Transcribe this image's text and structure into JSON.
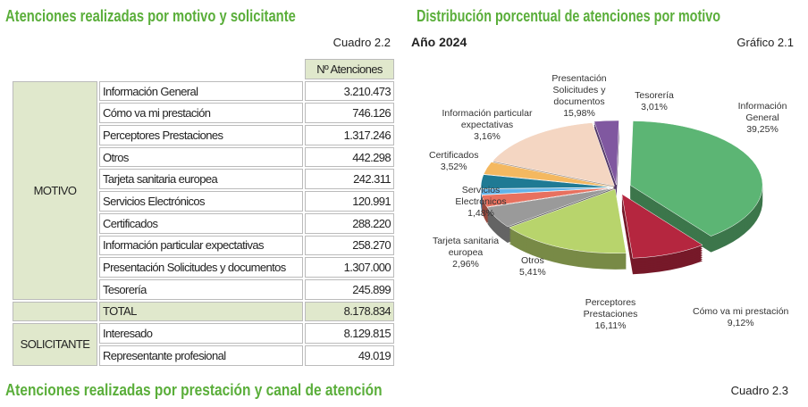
{
  "left": {
    "title": "Atenciones realizadas por motivo y solicitante",
    "cuadro": "Cuadro 2.2",
    "header": "Nº Atenciones",
    "motivo_label": "MOTIVO",
    "motivo_rows": [
      {
        "label": "Información General",
        "value": "3.210.473"
      },
      {
        "label": "Cómo va mi prestación",
        "value": "746.126"
      },
      {
        "label": "Perceptores Prestaciones",
        "value": "1.317.246"
      },
      {
        "label": "Otros",
        "value": "442.298"
      },
      {
        "label": "Tarjeta sanitaria europea",
        "value": "242.311"
      },
      {
        "label": "Servicios Electrónicos",
        "value": "120.991"
      },
      {
        "label": "Certificados",
        "value": "288.220"
      },
      {
        "label": "Información particular expectativas",
        "value": "258.270"
      },
      {
        "label": "Presentación Solicitudes y documentos",
        "value": "1.307.000"
      },
      {
        "label": "Tesorería",
        "value": "245.899"
      }
    ],
    "total_label": "TOTAL",
    "total_value": "8.178.834",
    "solicitante_label": "SOLICITANTE",
    "solicitante_rows": [
      {
        "label": "Interesado",
        "value": "8.129.815"
      },
      {
        "label": "Representante profesional",
        "value": "49.019"
      }
    ]
  },
  "right": {
    "title": "Distribución porcentual de atenciones por motivo",
    "year": "Año 2024",
    "grafico": "Gráfico 2.1"
  },
  "chart_data": {
    "type": "pie",
    "title": "Distribución porcentual de atenciones por motivo",
    "slices": [
      {
        "name": "Información General",
        "value": 39.25,
        "label": "39,25%",
        "color": "#5cb574"
      },
      {
        "name": "Cómo va mi prestación",
        "value": 9.12,
        "label": "9,12%",
        "color": "#b5263f"
      },
      {
        "name": "Perceptores Prestaciones",
        "value": 16.11,
        "label": "16,11%",
        "color": "#b8d46c"
      },
      {
        "name": "Otros",
        "value": 5.41,
        "label": "5,41%",
        "color": "#9a9a9a"
      },
      {
        "name": "Tarjeta sanitaria europea",
        "value": 2.96,
        "label": "2,96%",
        "color": "#e8715f"
      },
      {
        "name": "Servicios Electrónicos",
        "value": 1.48,
        "label": "1,48%",
        "color": "#62b4ea"
      },
      {
        "name": "Certificados",
        "value": 3.52,
        "label": "3,52%",
        "color": "#1f7a94"
      },
      {
        "name": "Información particular expectativas",
        "value": 3.16,
        "label": "3,16%",
        "color": "#f4b860"
      },
      {
        "name": "Presentación Solicitudes y documentos",
        "value": 15.98,
        "label": "15,98%",
        "color": "#f4d6c2"
      },
      {
        "name": "Tesorería",
        "value": 3.01,
        "label": "3,01%",
        "color": "#8058a0"
      }
    ]
  },
  "bottom": {
    "title": "Atenciones realizadas por prestación y canal de atención",
    "cuadro": "Cuadro 2.3"
  }
}
